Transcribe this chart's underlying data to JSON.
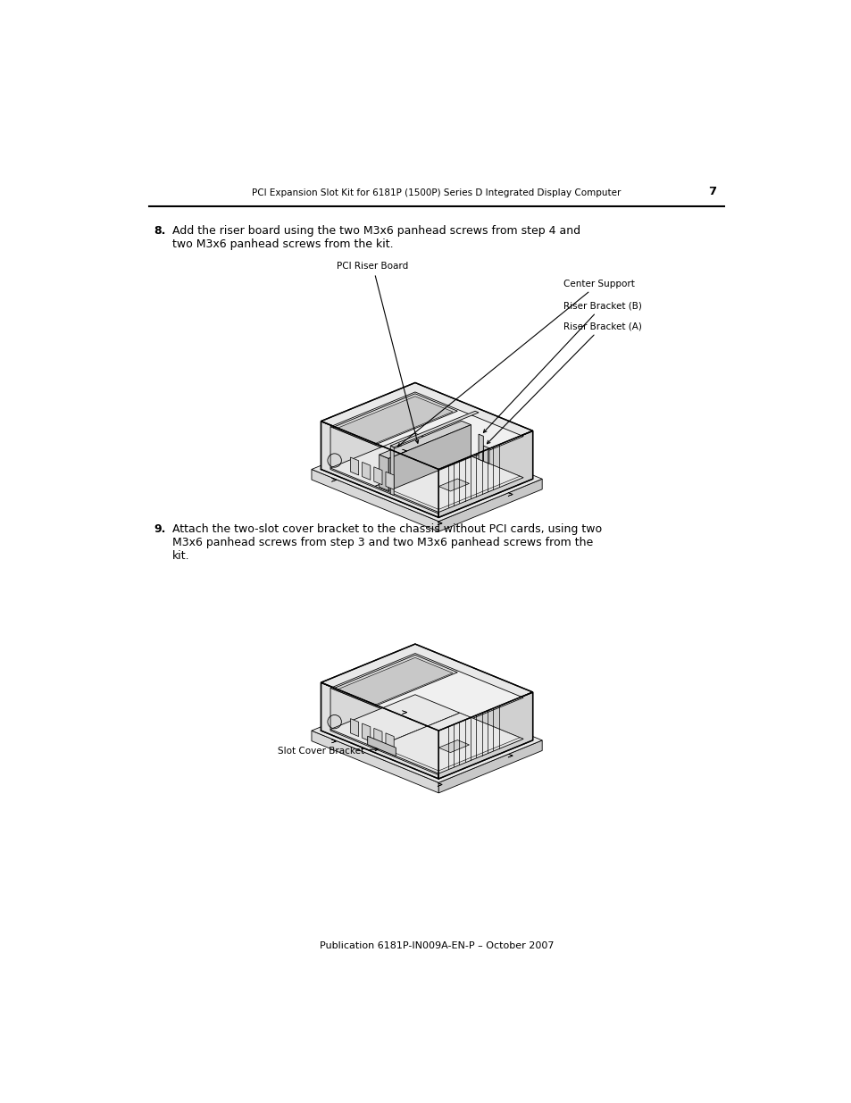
{
  "page_width": 9.54,
  "page_height": 12.35,
  "background_color": "#ffffff",
  "header_text": "PCI Expansion Slot Kit for 6181P (1500P) Series D Integrated Display Computer",
  "header_page_num": "7",
  "header_font_size": 7.5,
  "footer_text": "Publication 6181P-IN009A-EN-P – October 2007",
  "footer_font_size": 8,
  "step8_number": "8.",
  "step8_text": "Add the riser board using the two M3x6 panhead screws from step 4 and\ntwo M3x6 panhead screws from the kit.",
  "step9_number": "9.",
  "step9_text": "Attach the two-slot cover bracket to the chassis without PCI cards, using two\nM3x6 panhead screws from step 3 and two M3x6 panhead screws from the\nkit.",
  "body_font_size": 9,
  "label_font_size": 7.5,
  "label1_pci_riser": "PCI Riser Board",
  "label1_center_support": "Center Support",
  "label1_riser_b": "Riser Bracket (B)",
  "label1_riser_a": "Riser Bracket (A)",
  "label2_slot_cover": "Slot Cover Bracket"
}
